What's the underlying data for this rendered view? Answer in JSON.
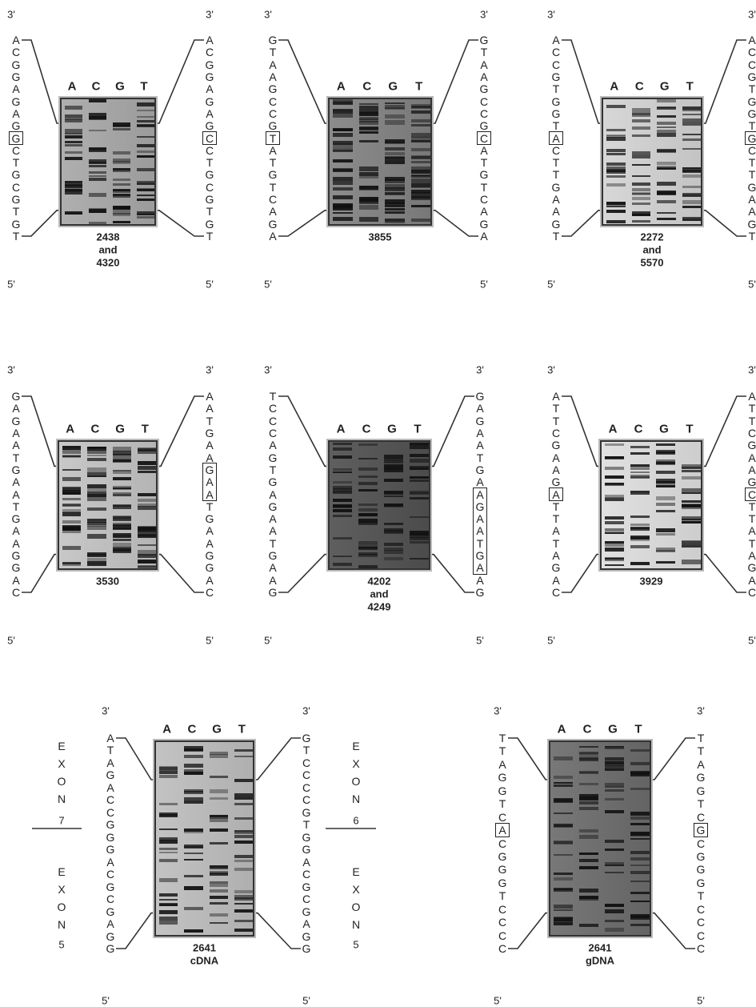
{
  "panels": [
    {
      "left": {
        "end3": "3'",
        "bases": [
          "A",
          "C",
          "G",
          "G",
          "A",
          "G",
          "A",
          "G",
          "G",
          "C",
          "T",
          "G",
          "C",
          "G",
          "T",
          "G",
          "T"
        ],
        "end5": "5'",
        "box": [
          8,
          8
        ]
      },
      "right": {
        "end3": "3'",
        "bases": [
          "A",
          "C",
          "G",
          "G",
          "A",
          "G",
          "A",
          "G",
          "C",
          "C",
          "T",
          "G",
          "C",
          "G",
          "T",
          "G",
          "T"
        ],
        "end5": "5'",
        "box": [
          8,
          8
        ]
      },
      "lanes": [
        "A",
        "C",
        "G",
        "T"
      ],
      "caption": [
        "2438",
        "and",
        "4320"
      ]
    },
    {
      "left": {
        "end3": "3'",
        "bases": [
          "G",
          "T",
          "A",
          "A",
          "G",
          "C",
          "C",
          "G",
          "T",
          "A",
          "T",
          "G",
          "T",
          "C",
          "A",
          "G",
          "A"
        ],
        "end5": "5'",
        "box": [
          8,
          8
        ]
      },
      "right": {
        "end3": "3'",
        "bases": [
          "G",
          "T",
          "A",
          "A",
          "G",
          "C",
          "C",
          "G",
          "C",
          "A",
          "T",
          "G",
          "T",
          "C",
          "A",
          "G",
          "A"
        ],
        "end5": "5'",
        "box": [
          8,
          8
        ]
      },
      "lanes": [
        "A",
        "C",
        "G",
        "T"
      ],
      "caption": [
        "3855"
      ]
    },
    {
      "left": {
        "end3": "3'",
        "bases": [
          "A",
          "C",
          "C",
          "G",
          "T",
          "G",
          "G",
          "T",
          "A",
          "C",
          "T",
          "T",
          "G",
          "A",
          "A",
          "G",
          "T"
        ],
        "end5": "5'",
        "box": [
          8,
          8
        ]
      },
      "right": {
        "end3": "3'",
        "bases": [
          "A",
          "C",
          "C",
          "G",
          "T",
          "G",
          "G",
          "T",
          "G",
          "C",
          "T",
          "T",
          "G",
          "A",
          "A",
          "G",
          "T"
        ],
        "end5": "5'",
        "box": [
          8,
          8
        ]
      },
      "lanes": [
        "A",
        "C",
        "G",
        "T"
      ],
      "caption": [
        "2272",
        "and",
        "5570"
      ]
    },
    {
      "left": {
        "end3": "3'",
        "bases": [
          "G",
          "A",
          "G",
          "A",
          "A",
          "T",
          "G",
          "A",
          "A",
          "T",
          "G",
          "A",
          "A",
          "G",
          "G",
          "A",
          "C"
        ],
        "end5": "5'"
      },
      "right": {
        "end3": "3'",
        "bases": [
          "A",
          "A",
          "T",
          "G",
          "A",
          "A",
          "G",
          "A",
          "A",
          "T",
          "G",
          "A",
          "A",
          "G",
          "G",
          "A",
          "C"
        ],
        "end5": "5'",
        "box": [
          6,
          8
        ]
      },
      "lanes": [
        "A",
        "C",
        "G",
        "T"
      ],
      "caption": [
        "3530"
      ]
    },
    {
      "left": {
        "end3": "3'",
        "bases": [
          "T",
          "C",
          "C",
          "C",
          "A",
          "G",
          "T",
          "G",
          "A",
          "G",
          "A",
          "A",
          "T",
          "G",
          "A",
          "A",
          "G"
        ],
        "end5": "5'"
      },
      "right": {
        "end3": "3'",
        "bases": [
          "G",
          "A",
          "G",
          "A",
          "A",
          "T",
          "G",
          "A",
          "A",
          "G",
          "A",
          "A",
          "T",
          "G",
          "A",
          "A",
          "G"
        ],
        "end5": "5'",
        "box": [
          8,
          14
        ]
      },
      "lanes": [
        "A",
        "C",
        "G",
        "T"
      ],
      "caption": [
        "4202",
        "and",
        "4249"
      ]
    },
    {
      "left": {
        "end3": "3'",
        "bases": [
          "A",
          "T",
          "T",
          "C",
          "G",
          "A",
          "A",
          "G",
          "A",
          "T",
          "T",
          "A",
          "T",
          "A",
          "G",
          "A",
          "C"
        ],
        "end5": "5'",
        "box": [
          8,
          8
        ]
      },
      "right": {
        "end3": "3'",
        "bases": [
          "A",
          "T",
          "T",
          "C",
          "G",
          "A",
          "A",
          "G",
          "C",
          "T",
          "T",
          "A",
          "T",
          "A",
          "G",
          "A",
          "C"
        ],
        "end5": "5'",
        "box": [
          8,
          8
        ]
      },
      "lanes": [
        "A",
        "C",
        "G",
        "T"
      ],
      "caption": [
        "3929"
      ]
    },
    {
      "left": {
        "end3": "3'",
        "bases": [
          "A",
          "T",
          "A",
          "G",
          "A",
          "C",
          "C",
          "G",
          "G",
          "G",
          "A",
          "C",
          "G",
          "C",
          "G",
          "A",
          "G",
          "G"
        ],
        "end5": "5'"
      },
      "right": {
        "end3": "3'",
        "bases": [
          "G",
          "T",
          "C",
          "C",
          "C",
          "C",
          "G",
          "T",
          "G",
          "G",
          "A",
          "C",
          "G",
          "C",
          "G",
          "A",
          "G",
          "G"
        ],
        "end5": "5'"
      },
      "lanes": [
        "A",
        "C",
        "G",
        "T"
      ],
      "caption": [
        "2641",
        "cDNA"
      ],
      "exons": {
        "left": [
          {
            "label": "EXON",
            "number": "7"
          },
          {
            "label": "EXON",
            "number": "5"
          }
        ],
        "right": [
          {
            "label": "EXON",
            "number": "6"
          },
          {
            "label": "EXON",
            "number": "5"
          }
        ]
      }
    },
    {
      "left": {
        "end3": "3'",
        "bases": [
          "T",
          "T",
          "A",
          "G",
          "G",
          "T",
          "C",
          "A",
          "C",
          "G",
          "G",
          "G",
          "T",
          "C",
          "C",
          "C",
          "C"
        ],
        "end5": "5'",
        "box": [
          7,
          7
        ]
      },
      "right": {
        "end3": "3'",
        "bases": [
          "T",
          "T",
          "A",
          "G",
          "G",
          "T",
          "C",
          "G",
          "C",
          "G",
          "G",
          "G",
          "T",
          "C",
          "C",
          "C",
          "C"
        ],
        "end5": "5'",
        "box": [
          7,
          7
        ]
      },
      "lanes": [
        "A",
        "C",
        "G",
        "T"
      ],
      "caption": [
        "2641",
        "gDNA"
      ]
    }
  ]
}
